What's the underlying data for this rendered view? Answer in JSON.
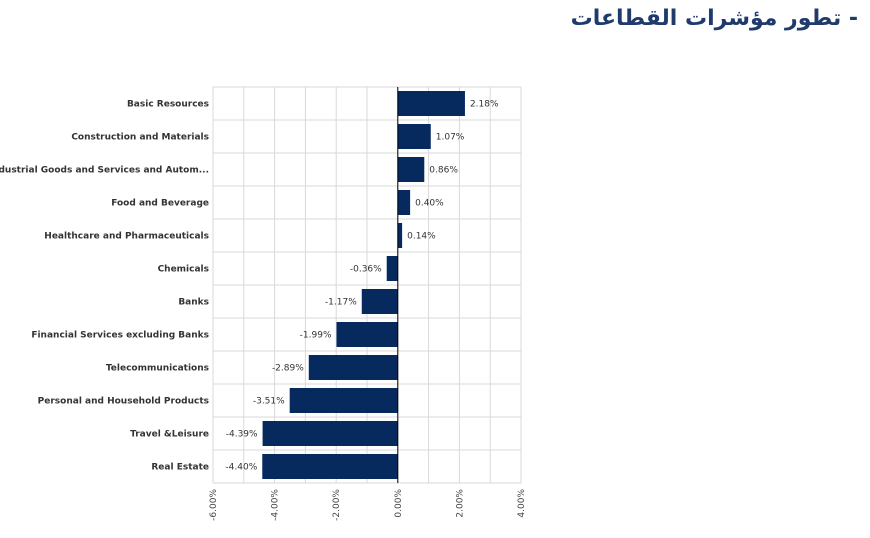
{
  "header": {
    "title": "- تطور مؤشرات القطاعات"
  },
  "colors": {
    "bar": "#06295e",
    "grid": "#d9d9d9",
    "axis": "#000000",
    "title": "#1f3b6b"
  },
  "chart_data": {
    "type": "bar",
    "orientation": "horizontal",
    "title": "",
    "xlabel": "",
    "ylabel": "",
    "categories": [
      "Basic Resources",
      "Construction and Materials",
      "Industrial Goods and Services and Autom...",
      "Food and Beverage",
      "Healthcare and Pharmaceuticals",
      "Chemicals",
      "Banks",
      "Financial Services excluding Banks",
      "Telecommunications",
      "Personal and Household Products",
      "Travel &Leisure",
      "Real Estate"
    ],
    "values": [
      2.18,
      1.07,
      0.86,
      0.4,
      0.14,
      -0.36,
      -1.17,
      -1.99,
      -2.89,
      -3.51,
      -4.39,
      -4.4
    ],
    "value_labels": [
      "2.18%",
      "1.07%",
      "0.86%",
      "0.40%",
      "0.14%",
      "-0.36%",
      "-1.17%",
      "-1.99%",
      "-2.89%",
      "-3.51%",
      "-4.39%",
      "-4.40%"
    ],
    "xlim": [
      -6,
      4
    ],
    "xticks": [
      -6,
      -4,
      -2,
      0,
      2,
      4
    ],
    "xtick_labels": [
      "-6.00%",
      "-4.00%",
      "-2.00%",
      "0.00%",
      "2.00%",
      "4.00%"
    ],
    "grid": true,
    "legend": "none"
  }
}
